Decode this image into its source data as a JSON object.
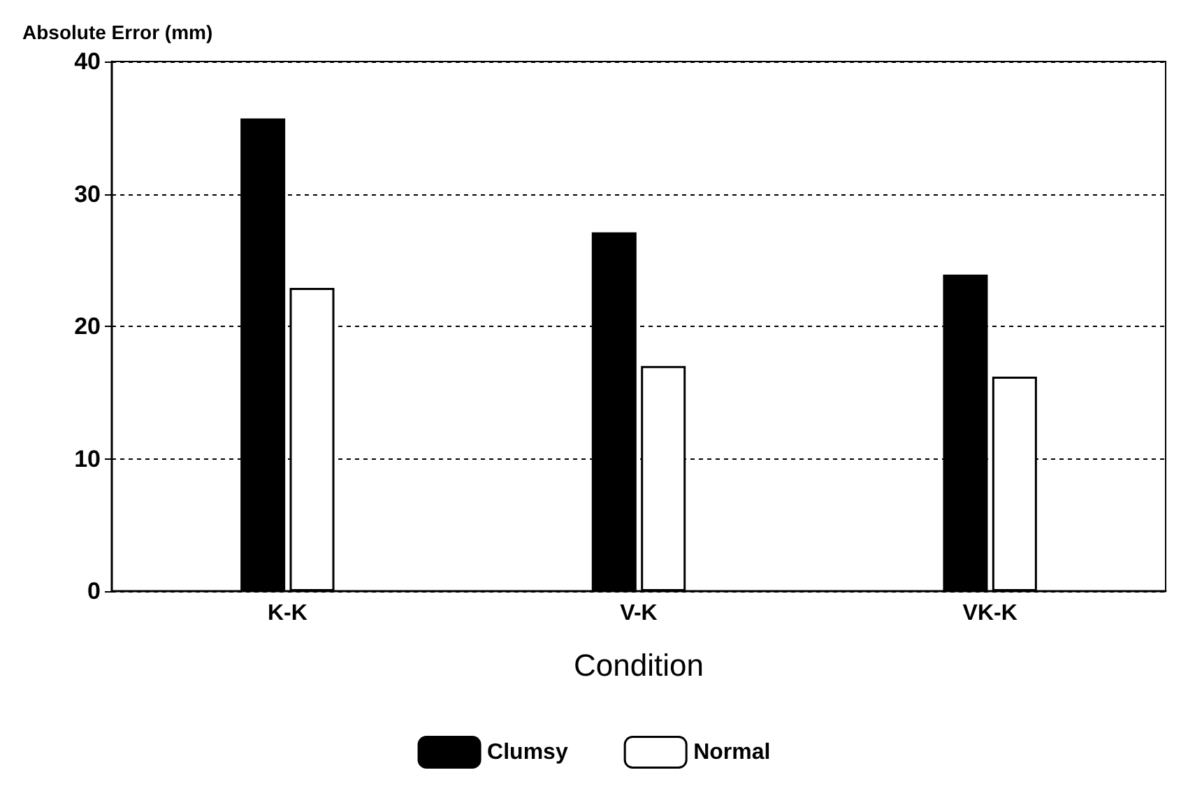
{
  "chart_data": {
    "type": "bar",
    "ylabel": "Absolute Error (mm)",
    "xlabel": "Condition",
    "categories": [
      "K-K",
      "V-K",
      "VK-K"
    ],
    "series": [
      {
        "name": "Clumsy",
        "color": "#000000",
        "values": [
          35.7,
          27.1,
          23.9
        ]
      },
      {
        "name": "Normal",
        "color": "#ffffff",
        "values": [
          22.9,
          17.0,
          16.2
        ]
      }
    ],
    "ylim": [
      0,
      40
    ],
    "yticks": [
      0,
      10,
      20,
      30,
      40
    ],
    "grid": "y",
    "legend": "bottom"
  }
}
